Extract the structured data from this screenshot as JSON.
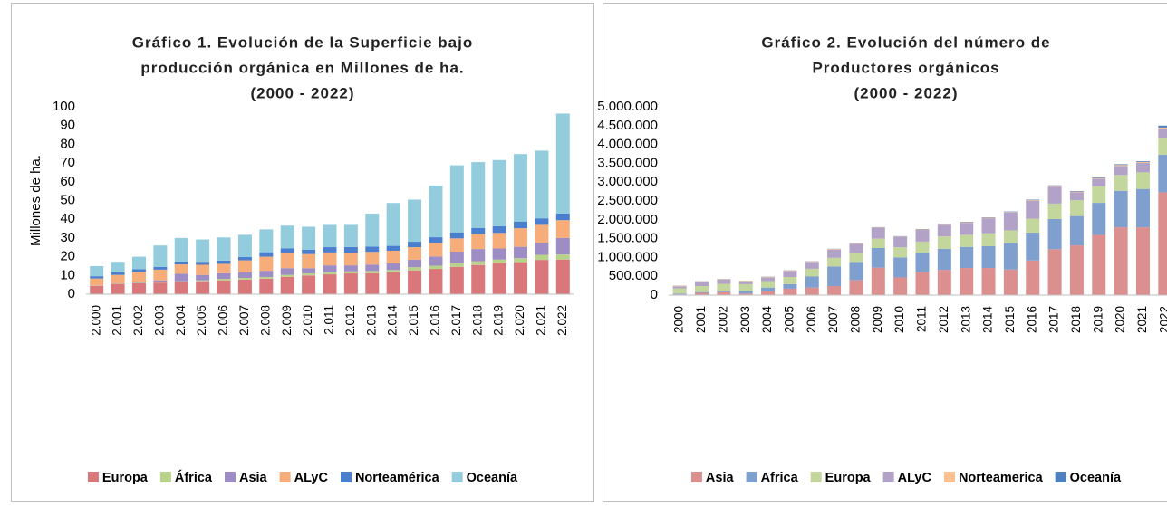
{
  "chart_data": [
    {
      "type": "bar",
      "stacked": true,
      "title": [
        "Gráfico 1. Evolución de la Superficie bajo",
        "producción orgánica en Millones de ha.",
        "(2000 - 2022)"
      ],
      "y_label": "Millones de ha.",
      "categories": [
        "2.000",
        "2.001",
        "2.002",
        "2.003",
        "2.004",
        "2.005",
        "2.006",
        "2.007",
        "2.008",
        "2.009",
        "2.010",
        "2.011",
        "2.012",
        "2.013",
        "2.014",
        "2.015",
        "2.016",
        "2.017",
        "2.018",
        "2.019",
        "2.020",
        "2.021",
        "2.022"
      ],
      "ylim": [
        0,
        100
      ],
      "yticks": [
        0,
        10,
        20,
        30,
        40,
        50,
        60,
        70,
        80,
        90,
        100
      ],
      "grid": false,
      "legend": "bottom",
      "series": [
        {
          "name": "Europa",
          "color": "#d9777a",
          "values": [
            4.5,
            5.5,
            5.8,
            6.2,
            6.5,
            6.9,
            7.4,
            7.8,
            8.3,
            9.3,
            10,
            10.6,
            11.1,
            11.2,
            11.6,
            12.7,
            13.5,
            14.6,
            15.6,
            16.5,
            17.1,
            18.3,
            18.5
          ]
        },
        {
          "name": "África",
          "color": "#b9d28a",
          "values": [
            0.1,
            0.2,
            0.3,
            0.3,
            0.4,
            0.5,
            0.8,
            0.9,
            0.9,
            1,
            1.1,
            1.1,
            1.1,
            1.2,
            1.3,
            1.7,
            1.7,
            2,
            2,
            2,
            2.1,
            2.7,
            2.7
          ]
        },
        {
          "name": "Asia",
          "color": "#9e8cc4",
          "values": [
            0.1,
            0.1,
            0.6,
            0.9,
            4,
            2.9,
            3,
            3,
            3.3,
            3.6,
            2.8,
            3.7,
            3.2,
            3.4,
            3.6,
            4,
            4.9,
            6.1,
            6.5,
            5.9,
            6.1,
            6.5,
            8.8
          ]
        },
        {
          "name": "ALyC",
          "color": "#f7ad7a",
          "values": [
            3.7,
            4.5,
            5.3,
            5.7,
            5,
            5.4,
            5,
            6.4,
            7.5,
            8,
            7.5,
            6.9,
            6.8,
            6.8,
            6.7,
            6.7,
            7.2,
            7.1,
            8,
            8.3,
            9.9,
            9.5,
            9.5
          ]
        },
        {
          "name": "Norteamérica",
          "color": "#4a7fd0",
          "values": [
            1.2,
            1.3,
            1.3,
            1.4,
            1.5,
            1.6,
            1.7,
            1.7,
            2.4,
            2.6,
            2.4,
            2.8,
            3,
            2.8,
            2.6,
            2.9,
            3.1,
            3.2,
            3.3,
            3.6,
            3.6,
            3.5,
            3.5
          ]
        },
        {
          "name": "Oceanía",
          "color": "#93cddd",
          "values": [
            5.4,
            5.7,
            6.7,
            11.5,
            12.6,
            11.9,
            12.4,
            11.9,
            12.2,
            12.1,
            12.2,
            11.9,
            11.8,
            17.6,
            22.9,
            22.5,
            27.6,
            35.8,
            35.1,
            35.3,
            36,
            36.1,
            53.4
          ]
        }
      ]
    },
    {
      "type": "bar",
      "stacked": true,
      "title": [
        "Gráfico 2. Evolución del número de",
        "Productores orgánicos",
        "(2000 - 2022)"
      ],
      "categories": [
        "2000",
        "2001",
        "2002",
        "2003",
        "2004",
        "2005",
        "2006",
        "2007",
        "2008",
        "2009",
        "2010",
        "2011",
        "2012",
        "2013",
        "2014",
        "2015",
        "2016",
        "2017",
        "2018",
        "2019",
        "2020",
        "2021",
        "2022"
      ],
      "ylim": [
        0,
        5000000
      ],
      "yticks": [
        0,
        {
          "value": 500000,
          "label": "500.000"
        },
        {
          "value": 1000000,
          "label": "1.000.000"
        },
        {
          "value": 1500000,
          "label": "1.500.000"
        },
        {
          "value": 2000000,
          "label": "2.000.000"
        },
        {
          "value": 2500000,
          "label": "2.500.000"
        },
        {
          "value": 3000000,
          "label": "3.000.000"
        },
        {
          "value": 3500000,
          "label": "3.500.000"
        },
        {
          "value": 4000000,
          "label": "4.000.000"
        },
        {
          "value": 4500000,
          "label": "4.500.000"
        },
        {
          "value": 5000000,
          "label": "5.000.000"
        }
      ],
      "grid": false,
      "legend": "bottom",
      "series": [
        {
          "name": "Asia",
          "color": "#dc8f8f",
          "values": [
            20000,
            60000,
            80000,
            40000,
            100000,
            170000,
            200000,
            240000,
            400000,
            730000,
            470000,
            610000,
            670000,
            720000,
            720000,
            680000,
            920000,
            1220000,
            1320000,
            1600000,
            1800000,
            1800000,
            2730000
          ]
        },
        {
          "name": "Africa",
          "color": "#7f9fcf",
          "values": [
            20000,
            20000,
            40000,
            70000,
            100000,
            120000,
            300000,
            520000,
            480000,
            520000,
            530000,
            520000,
            560000,
            560000,
            580000,
            700000,
            740000,
            800000,
            780000,
            850000,
            970000,
            1020000,
            1000000
          ]
        },
        {
          "name": "Europa",
          "color": "#c3d69b",
          "values": [
            140000,
            160000,
            180000,
            180000,
            170000,
            190000,
            200000,
            230000,
            230000,
            250000,
            270000,
            290000,
            330000,
            320000,
            340000,
            340000,
            370000,
            410000,
            420000,
            440000,
            420000,
            440000,
            450000
          ]
        },
        {
          "name": "ALyC",
          "color": "#b3a2c7",
          "values": [
            50000,
            110000,
            110000,
            70000,
            100000,
            160000,
            180000,
            220000,
            250000,
            280000,
            270000,
            310000,
            310000,
            320000,
            400000,
            470000,
            470000,
            450000,
            210000,
            200000,
            240000,
            250000,
            240000
          ]
        },
        {
          "name": "Norteamerica",
          "color": "#fac090",
          "values": [
            15000,
            15000,
            15000,
            15000,
            15000,
            15000,
            15000,
            15000,
            15000,
            15000,
            15000,
            15000,
            15000,
            15000,
            15000,
            15000,
            20000,
            20000,
            20000,
            20000,
            25000,
            25000,
            30000
          ]
        },
        {
          "name": "Oceanía",
          "color": "#4f81bd",
          "values": [
            5000,
            5000,
            5000,
            5000,
            5000,
            5000,
            5000,
            5000,
            5000,
            10000,
            10000,
            10000,
            10000,
            10000,
            10000,
            15000,
            15000,
            15000,
            15000,
            20000,
            20000,
            20000,
            50000
          ]
        }
      ]
    }
  ]
}
